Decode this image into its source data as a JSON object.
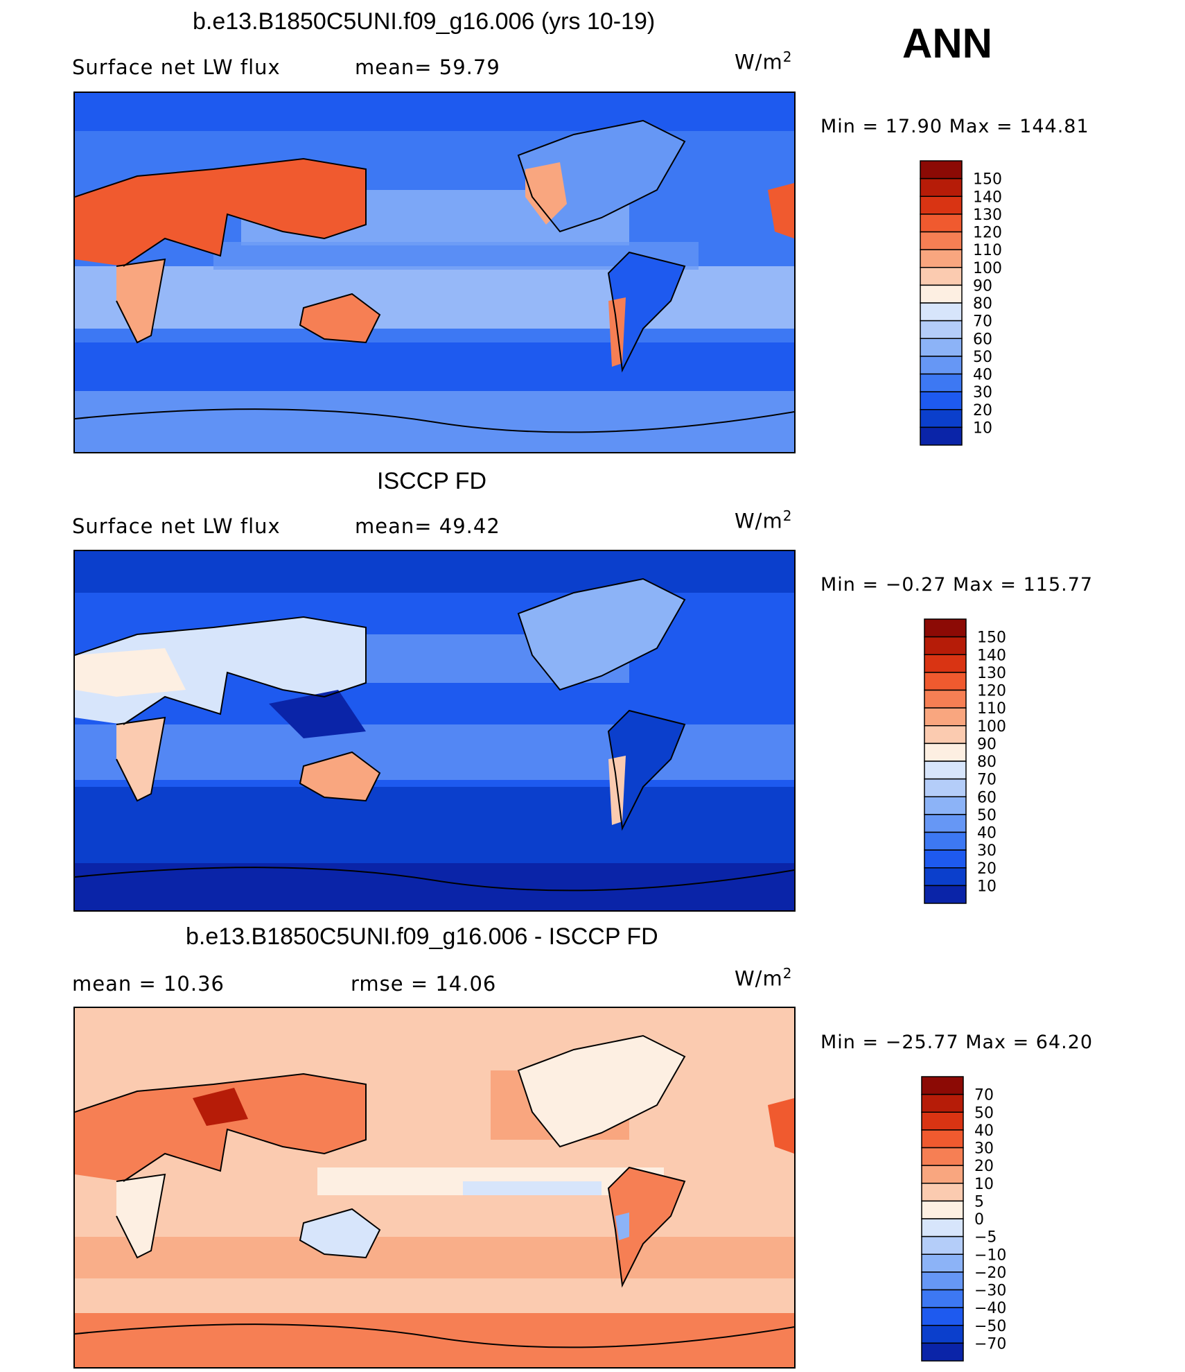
{
  "season_label": "ANN",
  "colorbar_colors": {
    "top_palette": [
      "#0a0a80",
      "#0a24a8",
      "#0b3fcc",
      "#1e5aef",
      "#3d78f3",
      "#6697f5",
      "#8cb3f7",
      "#b4cdf9",
      "#d7e5fb",
      "#fdefe2",
      "#fbcbb0",
      "#f9a67f",
      "#f67f54",
      "#f05a2f",
      "#d93413",
      "#b61c08",
      "#8c0a05"
    ],
    "diff_palette": [
      "#0a0a80",
      "#0a24a8",
      "#0b3fcc",
      "#1e5aef",
      "#3d78f3",
      "#6697f5",
      "#8cb3f7",
      "#b4cdf9",
      "#d7e5fb",
      "#fdefe2",
      "#fbcbb0",
      "#f9a67f",
      "#f67f54",
      "#f05a2f",
      "#d93413",
      "#b61c08",
      "#8c0a05"
    ]
  },
  "panels": [
    {
      "id": "model",
      "title": "b.e13.B1850C5UNI.f09_g16.006 (yrs 10-19)",
      "left_text": "Surface net LW flux",
      "mid_text": "mean=  59.79",
      "units_base": "W/m",
      "units_exp": "2",
      "minmax": "Min =   17.90 Max = 144.81",
      "levels": [
        "150",
        "140",
        "130",
        "120",
        "110",
        "100",
        "90",
        "80",
        "70",
        "60",
        "50",
        "40",
        "30",
        "20",
        "10"
      ],
      "map_base_color": "#3d78f3"
    },
    {
      "id": "obs",
      "title": "ISCCP FD",
      "left_text": "Surface net LW flux",
      "mid_text": "mean=  49.42",
      "units_base": "W/m",
      "units_exp": "2",
      "minmax": "Min =  −0.27 Max = 115.77",
      "levels": [
        "150",
        "140",
        "130",
        "120",
        "110",
        "100",
        "90",
        "80",
        "70",
        "60",
        "50",
        "40",
        "30",
        "20",
        "10"
      ],
      "map_base_color": "#1e5aef"
    },
    {
      "id": "diff",
      "title": "b.e13.B1850C5UNI.f09_g16.006 - ISCCP FD",
      "left_text": "mean =   10.36",
      "mid_text": "rmse =   14.06",
      "units_base": "W/m",
      "units_exp": "2",
      "minmax": "Min = −25.77 Max =  64.20",
      "levels": [
        "70",
        "50",
        "40",
        "30",
        "20",
        "10",
        "5",
        "0",
        "−5",
        "−10",
        "−20",
        "−30",
        "−40",
        "−50",
        "−70"
      ],
      "map_base_color": "#fbcbb0"
    }
  ]
}
